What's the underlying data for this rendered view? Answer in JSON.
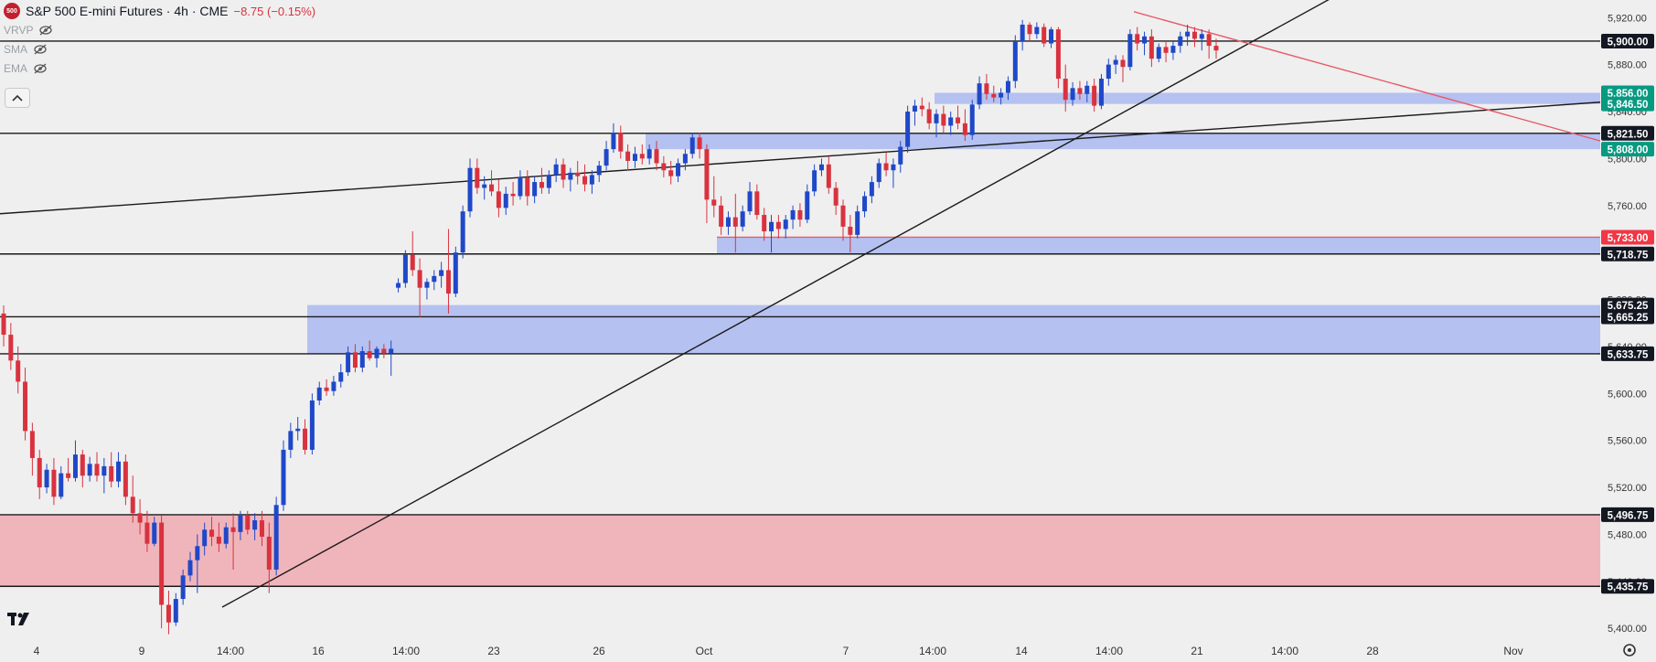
{
  "header": {
    "logo_text": "500",
    "symbol_title": "S&P 500 E-mini Futures · 4h · CME",
    "change": "−8.75 (−0.15%)",
    "change_color": "#d9323f"
  },
  "indicators": [
    {
      "label": "VRVP",
      "icon": "eye-off-icon"
    },
    {
      "label": "SMA",
      "icon": "eye-off-icon"
    },
    {
      "label": "EMA",
      "icon": "eye-off-icon"
    }
  ],
  "controls": {
    "collapse_icon": "chevron-up-icon",
    "settings_icon": "gear-icon",
    "brand_icon": "tradingview-logo-icon"
  },
  "chart_data": {
    "type": "candlestick",
    "timeframe": "4h",
    "ylim": [
      5390,
      5935
    ],
    "y_ticks": [
      "5,920.00",
      "5,880.00",
      "5,840.00",
      "5,800.00",
      "5,760.00",
      "5,720.00",
      "5,680.00",
      "5,640.00",
      "5,600.00",
      "5,560.00",
      "5,520.00",
      "5,480.00",
      "5,440.00",
      "5,400.00"
    ],
    "x_ticks": [
      "4",
      "9",
      "14:00",
      "16",
      "14:00",
      "23",
      "26",
      "Oct",
      "7",
      "14:00",
      "14",
      "14:00",
      "21",
      "14:00",
      "28",
      "Nov"
    ],
    "price_labels": [
      {
        "text": "5,900.00",
        "value": 5900.0,
        "kind": "level"
      },
      {
        "text": "5,856.00",
        "value": 5856.0,
        "kind": "zone"
      },
      {
        "text": "5,846.50",
        "value": 5846.5,
        "kind": "zone"
      },
      {
        "text": "5,821.50",
        "value": 5821.5,
        "kind": "level"
      },
      {
        "text": "5,808.00",
        "value": 5808.0,
        "kind": "zone"
      },
      {
        "text": "5,733.00",
        "value": 5733.0,
        "kind": "red"
      },
      {
        "text": "5,718.75",
        "value": 5718.75,
        "kind": "level"
      },
      {
        "text": "5,675.25",
        "value": 5675.25,
        "kind": "level"
      },
      {
        "text": "5,665.25",
        "value": 5665.25,
        "kind": "level"
      },
      {
        "text": "5,633.75",
        "value": 5633.75,
        "kind": "level"
      },
      {
        "text": "5,496.75",
        "value": 5496.75,
        "kind": "level"
      },
      {
        "text": "5,435.75",
        "value": 5435.75,
        "kind": "level"
      }
    ],
    "horizontal_levels": [
      5900.0,
      5821.5,
      5718.75,
      5665.25,
      5633.75,
      5496.75,
      5435.75
    ],
    "zones": [
      {
        "from": 5435.75,
        "to": 5496.75,
        "color": "#f0aeb5",
        "start": "Sep 4"
      },
      {
        "from": 5633.75,
        "to": 5675.25,
        "color": "#aebbf0",
        "start": "Sep 16"
      },
      {
        "from": 5718.75,
        "to": 5733.0,
        "color": "#aebbf0",
        "start": "Oct 2"
      },
      {
        "from": 5808.0,
        "to": 5821.5,
        "color": "#aebbf0",
        "start": "Sep 27"
      },
      {
        "from": 5846.5,
        "to": 5856.0,
        "color": "#aebbf0",
        "start": "Oct 10"
      }
    ],
    "trendlines": [
      {
        "name": "black-rising-trendline",
        "color": "#1a1a1a",
        "points": [
          [
            "Sep 11",
            5418
          ],
          [
            "Oct 24",
            5940
          ]
        ]
      },
      {
        "name": "black-resistance-line",
        "color": "#1a1a1a",
        "points": [
          [
            "Sep 4",
            5753
          ],
          [
            "Nov 4",
            5848
          ]
        ]
      },
      {
        "name": "red-falling-trendline",
        "color": "#e85a68",
        "points": [
          [
            "Oct 18",
            5925
          ],
          [
            "Nov 4",
            5815
          ]
        ]
      }
    ],
    "candle_colors": {
      "up": "#1f48c8",
      "down": "#d9323f"
    },
    "candles": [
      [
        5668,
        5675,
        5640,
        5650
      ],
      [
        5650,
        5660,
        5620,
        5628
      ],
      [
        5628,
        5640,
        5600,
        5610
      ],
      [
        5610,
        5622,
        5560,
        5568
      ],
      [
        5568,
        5575,
        5530,
        5545
      ],
      [
        5545,
        5552,
        5510,
        5520
      ],
      [
        5520,
        5540,
        5515,
        5535
      ],
      [
        5535,
        5545,
        5505,
        5512
      ],
      [
        5512,
        5538,
        5510,
        5532
      ],
      [
        5532,
        5545,
        5525,
        5528
      ],
      [
        5528,
        5560,
        5525,
        5548
      ],
      [
        5548,
        5552,
        5520,
        5530
      ],
      [
        5530,
        5546,
        5525,
        5540
      ],
      [
        5540,
        5550,
        5525,
        5530
      ],
      [
        5530,
        5545,
        5515,
        5538
      ],
      [
        5538,
        5550,
        5520,
        5525
      ],
      [
        5525,
        5550,
        5520,
        5542
      ],
      [
        5542,
        5548,
        5505,
        5512
      ],
      [
        5512,
        5530,
        5490,
        5498
      ],
      [
        5498,
        5510,
        5480,
        5490
      ],
      [
        5490,
        5500,
        5465,
        5472
      ],
      [
        5472,
        5495,
        5470,
        5490
      ],
      [
        5490,
        5496,
        5400,
        5420
      ],
      [
        5420,
        5432,
        5395,
        5405
      ],
      [
        5405,
        5430,
        5402,
        5425
      ],
      [
        5425,
        5450,
        5420,
        5445
      ],
      [
        5445,
        5465,
        5440,
        5458
      ],
      [
        5458,
        5480,
        5430,
        5470
      ],
      [
        5470,
        5490,
        5462,
        5484
      ],
      [
        5484,
        5495,
        5470,
        5478
      ],
      [
        5478,
        5490,
        5465,
        5472
      ],
      [
        5472,
        5490,
        5468,
        5486
      ],
      [
        5486,
        5498,
        5450,
        5482
      ],
      [
        5482,
        5500,
        5475,
        5496
      ],
      [
        5496,
        5500,
        5480,
        5484
      ],
      [
        5484,
        5498,
        5475,
        5492
      ],
      [
        5492,
        5500,
        5470,
        5478
      ],
      [
        5478,
        5490,
        5430,
        5450
      ],
      [
        5450,
        5512,
        5445,
        5505
      ],
      [
        5505,
        5560,
        5500,
        5552
      ],
      [
        5552,
        5575,
        5545,
        5568
      ],
      [
        5568,
        5580,
        5560,
        5570
      ],
      [
        5570,
        5578,
        5548,
        5552
      ],
      [
        5552,
        5600,
        5548,
        5594
      ],
      [
        5594,
        5610,
        5590,
        5605
      ],
      [
        5605,
        5612,
        5598,
        5602
      ],
      [
        5602,
        5615,
        5598,
        5610
      ],
      [
        5610,
        5625,
        5605,
        5618
      ],
      [
        5618,
        5640,
        5615,
        5635
      ],
      [
        5635,
        5642,
        5618,
        5622
      ],
      [
        5622,
        5640,
        5618,
        5636
      ],
      [
        5636,
        5645,
        5628,
        5630
      ],
      [
        5630,
        5640,
        5622,
        5638
      ],
      [
        5638,
        5642,
        5630,
        5634
      ],
      [
        5634,
        5645,
        5615,
        5638
      ],
      [
        5690,
        5698,
        5686,
        5694
      ],
      [
        5694,
        5722,
        5690,
        5718
      ],
      [
        5718,
        5738,
        5700,
        5705
      ],
      [
        5705,
        5715,
        5665,
        5690
      ],
      [
        5690,
        5698,
        5680,
        5695
      ],
      [
        5695,
        5705,
        5688,
        5700
      ],
      [
        5700,
        5712,
        5690,
        5705
      ],
      [
        5705,
        5740,
        5668,
        5685
      ],
      [
        5685,
        5725,
        5682,
        5720
      ],
      [
        5720,
        5760,
        5715,
        5755
      ],
      [
        5755,
        5800,
        5750,
        5792
      ],
      [
        5792,
        5800,
        5770,
        5775
      ],
      [
        5775,
        5785,
        5765,
        5778
      ],
      [
        5778,
        5790,
        5768,
        5772
      ],
      [
        5772,
        5782,
        5750,
        5758
      ],
      [
        5758,
        5776,
        5752,
        5770
      ],
      [
        5770,
        5780,
        5760,
        5768
      ],
      [
        5768,
        5790,
        5765,
        5784
      ],
      [
        5784,
        5790,
        5760,
        5768
      ],
      [
        5768,
        5785,
        5762,
        5780
      ],
      [
        5780,
        5792,
        5770,
        5775
      ],
      [
        5775,
        5790,
        5770,
        5786
      ],
      [
        5786,
        5800,
        5780,
        5795
      ],
      [
        5795,
        5800,
        5775,
        5782
      ],
      [
        5782,
        5792,
        5772,
        5788
      ],
      [
        5788,
        5798,
        5778,
        5785
      ],
      [
        5785,
        5795,
        5772,
        5778
      ],
      [
        5778,
        5790,
        5770,
        5786
      ],
      [
        5786,
        5798,
        5780,
        5794
      ],
      [
        5794,
        5815,
        5790,
        5808
      ],
      [
        5808,
        5830,
        5805,
        5822
      ],
      [
        5822,
        5828,
        5800,
        5806
      ],
      [
        5806,
        5812,
        5790,
        5798
      ],
      [
        5798,
        5810,
        5792,
        5804
      ],
      [
        5804,
        5812,
        5795,
        5800
      ],
      [
        5800,
        5812,
        5795,
        5808
      ],
      [
        5808,
        5815,
        5790,
        5796
      ],
      [
        5796,
        5802,
        5784,
        5790
      ],
      [
        5790,
        5798,
        5778,
        5785
      ],
      [
        5785,
        5800,
        5780,
        5796
      ],
      [
        5796,
        5808,
        5790,
        5804
      ],
      [
        5804,
        5822,
        5800,
        5818
      ],
      [
        5818,
        5822,
        5800,
        5808
      ],
      [
        5808,
        5812,
        5745,
        5765
      ],
      [
        5765,
        5785,
        5750,
        5760
      ],
      [
        5760,
        5768,
        5735,
        5742
      ],
      [
        5742,
        5755,
        5735,
        5750
      ],
      [
        5750,
        5770,
        5720,
        5742
      ],
      [
        5742,
        5760,
        5738,
        5755
      ],
      [
        5755,
        5780,
        5752,
        5772
      ],
      [
        5772,
        5778,
        5748,
        5752
      ],
      [
        5752,
        5758,
        5730,
        5738
      ],
      [
        5738,
        5752,
        5720,
        5746
      ],
      [
        5746,
        5752,
        5732,
        5740
      ],
      [
        5740,
        5752,
        5732,
        5748
      ],
      [
        5748,
        5760,
        5740,
        5756
      ],
      [
        5756,
        5762,
        5742,
        5748
      ],
      [
        5748,
        5778,
        5745,
        5772
      ],
      [
        5772,
        5795,
        5768,
        5790
      ],
      [
        5790,
        5800,
        5785,
        5795
      ],
      [
        5795,
        5802,
        5770,
        5775
      ],
      [
        5775,
        5780,
        5752,
        5760
      ],
      [
        5760,
        5765,
        5730,
        5742
      ],
      [
        5742,
        5752,
        5720,
        5735
      ],
      [
        5735,
        5760,
        5732,
        5755
      ],
      [
        5755,
        5772,
        5750,
        5768
      ],
      [
        5768,
        5785,
        5762,
        5780
      ],
      [
        5780,
        5800,
        5775,
        5796
      ],
      [
        5796,
        5805,
        5785,
        5790
      ],
      [
        5790,
        5800,
        5775,
        5795
      ],
      [
        5795,
        5815,
        5788,
        5810
      ],
      [
        5810,
        5845,
        5805,
        5840
      ],
      [
        5840,
        5850,
        5828,
        5845
      ],
      [
        5845,
        5852,
        5836,
        5842
      ],
      [
        5842,
        5848,
        5825,
        5830
      ],
      [
        5830,
        5842,
        5818,
        5838
      ],
      [
        5838,
        5845,
        5822,
        5828
      ],
      [
        5828,
        5840,
        5820,
        5835
      ],
      [
        5835,
        5845,
        5825,
        5830
      ],
      [
        5830,
        5842,
        5815,
        5820
      ],
      [
        5820,
        5850,
        5816,
        5846
      ],
      [
        5846,
        5870,
        5842,
        5864
      ],
      [
        5864,
        5872,
        5850,
        5855
      ],
      [
        5855,
        5862,
        5848,
        5852
      ],
      [
        5852,
        5860,
        5846,
        5856
      ],
      [
        5856,
        5870,
        5850,
        5866
      ],
      [
        5866,
        5905,
        5860,
        5900
      ],
      [
        5900,
        5918,
        5892,
        5914
      ],
      [
        5914,
        5916,
        5900,
        5906
      ],
      [
        5906,
        5916,
        5902,
        5912
      ],
      [
        5912,
        5915,
        5895,
        5898
      ],
      [
        5898,
        5912,
        5894,
        5910
      ],
      [
        5910,
        5912,
        5860,
        5868
      ],
      [
        5868,
        5880,
        5840,
        5850
      ],
      [
        5850,
        5865,
        5845,
        5860
      ],
      [
        5860,
        5866,
        5850,
        5855
      ],
      [
        5855,
        5866,
        5848,
        5862
      ],
      [
        5862,
        5868,
        5840,
        5845
      ],
      [
        5845,
        5872,
        5842,
        5868
      ],
      [
        5868,
        5885,
        5862,
        5880
      ],
      [
        5880,
        5888,
        5872,
        5884
      ],
      [
        5884,
        5888,
        5865,
        5878
      ],
      [
        5878,
        5910,
        5875,
        5906
      ],
      [
        5906,
        5912,
        5892,
        5898
      ],
      [
        5898,
        5908,
        5888,
        5904
      ],
      [
        5904,
        5910,
        5878,
        5885
      ],
      [
        5885,
        5898,
        5882,
        5895
      ],
      [
        5895,
        5900,
        5882,
        5890
      ],
      [
        5890,
        5900,
        5884,
        5896
      ],
      [
        5896,
        5908,
        5890,
        5904
      ],
      [
        5904,
        5914,
        5896,
        5908
      ],
      [
        5908,
        5912,
        5895,
        5902
      ],
      [
        5902,
        5910,
        5892,
        5906
      ],
      [
        5906,
        5910,
        5885,
        5896
      ],
      [
        5896,
        5902,
        5885,
        5892
      ]
    ]
  }
}
